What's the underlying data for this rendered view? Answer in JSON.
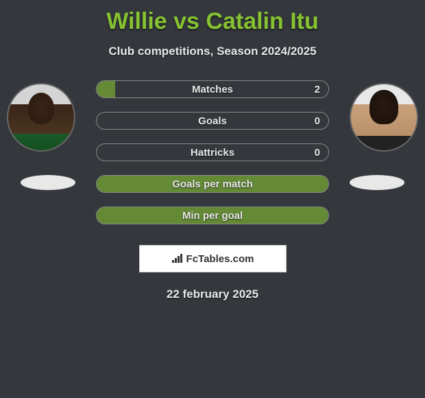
{
  "title": "Willie vs Catalin Itu",
  "subtitle": "Club competitions, Season 2024/2025",
  "date_text": "22 february 2025",
  "logo_text": "FcTables.com",
  "colors": {
    "background": "#34383d",
    "accent": "#86c232",
    "stat_border": "#888888",
    "text": "#e8e8e8",
    "logo_bg": "#ffffff",
    "logo_text": "#333333"
  },
  "players": {
    "left": {
      "name": "Willie"
    },
    "right": {
      "name": "Catalin Itu"
    }
  },
  "stats": [
    {
      "label": "Matches",
      "value_right": "2",
      "fill_pct": 8,
      "show_value": true
    },
    {
      "label": "Goals",
      "value_right": "0",
      "fill_pct": 0,
      "show_value": true
    },
    {
      "label": "Hattricks",
      "value_right": "0",
      "fill_pct": 0,
      "show_value": true
    },
    {
      "label": "Goals per match",
      "value_right": "",
      "fill_pct": 100,
      "show_value": false
    },
    {
      "label": "Min per goal",
      "value_right": "",
      "fill_pct": 100,
      "show_value": false
    }
  ]
}
